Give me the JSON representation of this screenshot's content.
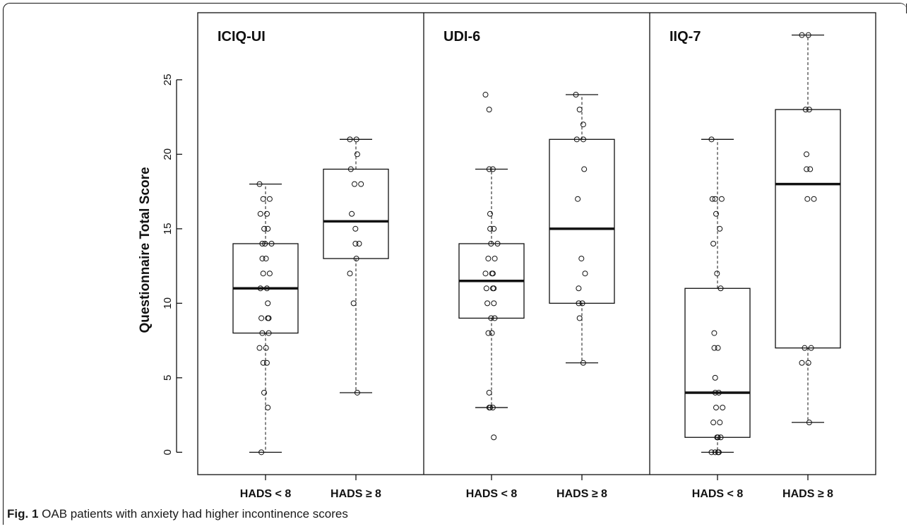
{
  "chart_data": {
    "type": "box",
    "ylabel": "Questionnaire Total Score",
    "ylim": [
      -1.5,
      29.5
    ],
    "yticks": [
      0,
      5,
      10,
      15,
      20,
      25
    ],
    "grid": false,
    "groups": [
      "HADS < 8",
      "HADS ≥ 8"
    ],
    "panels": [
      {
        "title": "ICIQ-UI",
        "boxes": [
          {
            "group": "HADS < 8",
            "min": 0,
            "q1": 8,
            "median": 11,
            "q3": 14,
            "max": 18,
            "points": [
              18,
              17,
              17,
              16,
              16,
              15,
              15,
              14,
              14,
              14,
              13,
              13,
              12,
              12,
              11,
              11,
              10,
              9,
              9,
              9,
              8,
              8,
              7,
              7,
              6,
              6,
              4,
              3,
              0
            ]
          },
          {
            "group": "HADS ≥ 8",
            "min": 4,
            "q1": 13,
            "median": 15.5,
            "q3": 19,
            "max": 21,
            "points": [
              21,
              21,
              20,
              19,
              18,
              18,
              16,
              15,
              14,
              14,
              13,
              12,
              10,
              4
            ]
          }
        ]
      },
      {
        "title": "UDI-6",
        "boxes": [
          {
            "group": "HADS < 8",
            "min": 3,
            "q1": 9,
            "median": 11.5,
            "q3": 14,
            "max": 19,
            "points": [
              24,
              23,
              19,
              19,
              16,
              15,
              15,
              14,
              14,
              13,
              13,
              12,
              12,
              12,
              11,
              11,
              11,
              10,
              10,
              9,
              9,
              8,
              8,
              4,
              3,
              3,
              3,
              1
            ]
          },
          {
            "group": "HADS ≥ 8",
            "min": 6,
            "q1": 10,
            "median": 15,
            "q3": 21,
            "max": 24,
            "points": [
              24,
              23,
              22,
              21,
              21,
              19,
              17,
              13,
              12,
              11,
              10,
              10,
              9,
              6
            ]
          }
        ]
      },
      {
        "title": "IIQ-7",
        "boxes": [
          {
            "group": "HADS < 8",
            "min": 0,
            "q1": 1,
            "median": 4,
            "q3": 11,
            "max": 21,
            "points": [
              21,
              17,
              17,
              17,
              16,
              15,
              14,
              12,
              11,
              8,
              7,
              7,
              5,
              4,
              4,
              3,
              3,
              2,
              2,
              1,
              1,
              1,
              0,
              0,
              0,
              0
            ]
          },
          {
            "group": "HADS ≥ 8",
            "min": 2,
            "q1": 7,
            "median": 18,
            "q3": 23,
            "max": 28,
            "points": [
              28,
              28,
              23,
              23,
              20,
              19,
              19,
              17,
              17,
              7,
              7,
              6,
              6,
              2
            ]
          }
        ]
      }
    ]
  },
  "caption": {
    "label": "Fig. 1",
    "text": " OAB patients with anxiety had higher incontinence scores"
  }
}
